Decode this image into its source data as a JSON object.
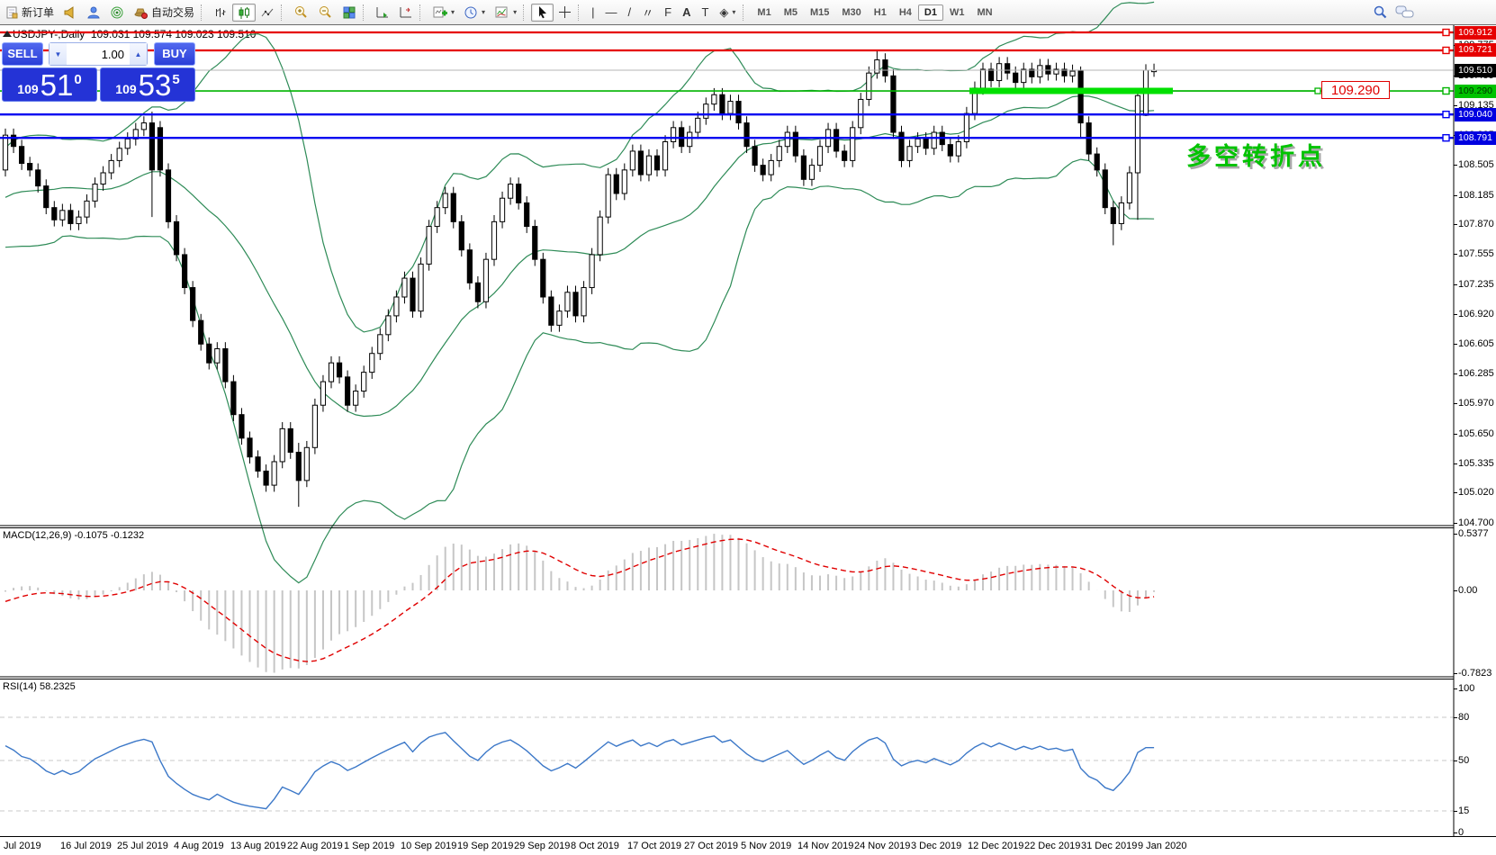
{
  "toolbar": {
    "new_order_label": "新订单",
    "autotrading_label": "自动交易",
    "timeframes": [
      "M1",
      "M5",
      "M15",
      "M30",
      "H1",
      "H4",
      "D1",
      "W1",
      "MN"
    ],
    "active_timeframe": "D1",
    "draw_glyphs": {
      "vline": "|",
      "hline": "—",
      "trend": "/",
      "channel": "〃",
      "cycle": "E",
      "fibo": "F",
      "text": "A",
      "label": "T",
      "arrows": "◈"
    }
  },
  "chart_data": {
    "type": "candlestick",
    "title": {
      "symbol": "USDJPY-,Daily",
      "ohlc": "109.031 109.574 109.023 109.510"
    },
    "annotation": {
      "text": "多空转折点",
      "color": "#00c300"
    },
    "price_flag": {
      "text": "109.290"
    },
    "one_click": {
      "sell_label": "SELL",
      "buy_label": "BUY",
      "volume": "1.00",
      "sell_big_figure": "109",
      "sell_price": "51",
      "sell_pip": "0",
      "buy_big_figure": "109",
      "buy_price": "53",
      "buy_pip": "5"
    },
    "price_axis": {
      "ticks": [
        109.775,
        109.455,
        109.135,
        108.825,
        108.505,
        108.185,
        107.87,
        107.555,
        107.235,
        106.92,
        106.605,
        106.285,
        105.97,
        105.65,
        105.335,
        105.02,
        104.7
      ],
      "badges": [
        {
          "value": "109.912",
          "bg": "#e60000",
          "fg": "#ffffff"
        },
        {
          "value": "109.721",
          "bg": "#e60000",
          "fg": "#ffffff"
        },
        {
          "value": "109.510",
          "bg": "#000000",
          "fg": "#ffffff"
        },
        {
          "value": "109.290",
          "bg": "#00c300",
          "fg": "#003300"
        },
        {
          "value": "109.040",
          "bg": "#0000e0",
          "fg": "#ffffff"
        },
        {
          "value": "108.791",
          "bg": "#0000e0",
          "fg": "#ffffff"
        }
      ]
    },
    "hlines": [
      {
        "value": 109.51,
        "color": "#b4b4b4",
        "w": 1,
        "marker": false
      },
      {
        "value": 109.912,
        "color": "#e60000",
        "w": 2.2,
        "marker": true
      },
      {
        "value": 109.721,
        "color": "#e60000",
        "w": 2.2,
        "marker": true
      },
      {
        "value": 109.29,
        "color": "#00b400",
        "w": 1.6,
        "marker": true
      },
      {
        "value": 109.04,
        "color": "#0000f0",
        "w": 2.4,
        "marker": true
      },
      {
        "value": 108.791,
        "color": "#0000f0",
        "w": 2.4,
        "marker": true
      }
    ],
    "trend_segment": {
      "value": 109.29,
      "color": "#00e000"
    },
    "bollinger_color": "#2e8b57",
    "candles": {
      "preroll": [
        109.35,
        109.3,
        109.4,
        109.45,
        109.52,
        109.58,
        109.48,
        109.3,
        109.1,
        108.82,
        108.52,
        108.3,
        108.1,
        107.92,
        108.02,
        108.22,
        108.45,
        108.3,
        108.1,
        107.85,
        107.75,
        107.9,
        108.1,
        108.3,
        108.15,
        107.95,
        107.8,
        107.7,
        107.85,
        108.05,
        108.25,
        108.4,
        108.5,
        108.35,
        108.2,
        108.05,
        107.95,
        108.1,
        108.3,
        108.45
      ],
      "closes": [
        108.82,
        108.7,
        108.52,
        108.45,
        108.28,
        108.05,
        107.92,
        108.02,
        107.88,
        107.95,
        108.12,
        108.3,
        108.42,
        108.55,
        108.68,
        108.78,
        108.88,
        108.95,
        108.9,
        108.45,
        107.9,
        107.55,
        107.2,
        106.85,
        106.6,
        106.4,
        106.55,
        106.2,
        105.85,
        105.6,
        105.4,
        105.25,
        105.1,
        105.35,
        105.7,
        105.45,
        105.15,
        105.5,
        105.95,
        106.2,
        106.4,
        106.25,
        105.95,
        106.1,
        106.3,
        106.5,
        106.7,
        106.9,
        107.1,
        107.3,
        106.95,
        107.45,
        107.85,
        108.05,
        108.2,
        107.9,
        107.6,
        107.25,
        107.05,
        107.5,
        107.9,
        108.15,
        108.3,
        108.1,
        107.85,
        107.5,
        107.1,
        106.8,
        106.95,
        107.15,
        106.9,
        107.2,
        107.55,
        107.95,
        108.4,
        108.2,
        108.45,
        108.65,
        108.4,
        108.6,
        108.45,
        108.75,
        108.9,
        108.7,
        108.85,
        109.0,
        109.15,
        109.25,
        109.05,
        109.18,
        108.95,
        108.7,
        108.5,
        108.4,
        108.55,
        108.7,
        108.85,
        108.6,
        108.35,
        108.5,
        108.7,
        108.88,
        108.65,
        108.55,
        108.9,
        109.2,
        109.48,
        109.62,
        109.45,
        108.85,
        108.55,
        108.7,
        108.78,
        108.68,
        108.85,
        108.72,
        108.6,
        108.75,
        109.05,
        109.32,
        109.52,
        109.4,
        109.58,
        109.48,
        109.38,
        109.52,
        109.44,
        109.56,
        109.47,
        109.52,
        109.45,
        109.5,
        108.95,
        108.62,
        108.45,
        108.05,
        107.88,
        108.1,
        108.42,
        109.24,
        109.51,
        109.51
      ],
      "overrides": {
        "18": [
          108.95,
          109.07,
          107.95,
          108.45
        ],
        "36": [
          105.45,
          105.55,
          104.87,
          105.15
        ],
        "107": [
          109.48,
          109.73,
          109.42,
          109.62
        ],
        "132": [
          109.5,
          109.55,
          108.8,
          108.95
        ],
        "136": [
          108.05,
          108.12,
          107.65,
          107.88
        ],
        "139": [
          108.42,
          109.28,
          107.92,
          109.24
        ],
        "140": [
          109.031,
          109.574,
          109.023,
          109.51
        ]
      }
    },
    "macd": {
      "label": "MACD(12,26,9) -0.1075 -0.1232",
      "fast": 12,
      "slow": 26,
      "signal": 9,
      "axis_labels": [
        "0.5377",
        "0.00",
        "-0.7823"
      ],
      "max": 0.5377,
      "min": -0.7823,
      "bar_color": "#c6c6c6",
      "signal_color": "#e00000"
    },
    "rsi": {
      "label": "RSI(14) 58.2325",
      "period": 14,
      "axis_labels": [
        "100",
        "80",
        "50",
        "15",
        "0"
      ],
      "axis_values": [
        100,
        80,
        50,
        15,
        0
      ],
      "levels": [
        80,
        50,
        15
      ],
      "line_color": "#3c78c8"
    },
    "dates": [
      "Jul 2019",
      "16 Jul 2019",
      "25 Jul 2019",
      "4 Aug 2019",
      "13 Aug 2019",
      "22 Aug 2019",
      "1 Sep 2019",
      "10 Sep 2019",
      "19 Sep 2019",
      "29 Sep 2019",
      "8 Oct 2019",
      "17 Oct 2019",
      "27 Oct 2019",
      "5 Nov 2019",
      "14 Nov 2019",
      "24 Nov 2019",
      "3 Dec 2019",
      "12 Dec 2019",
      "22 Dec 2019",
      "31 Dec 2019",
      "9 Jan 2020"
    ]
  }
}
